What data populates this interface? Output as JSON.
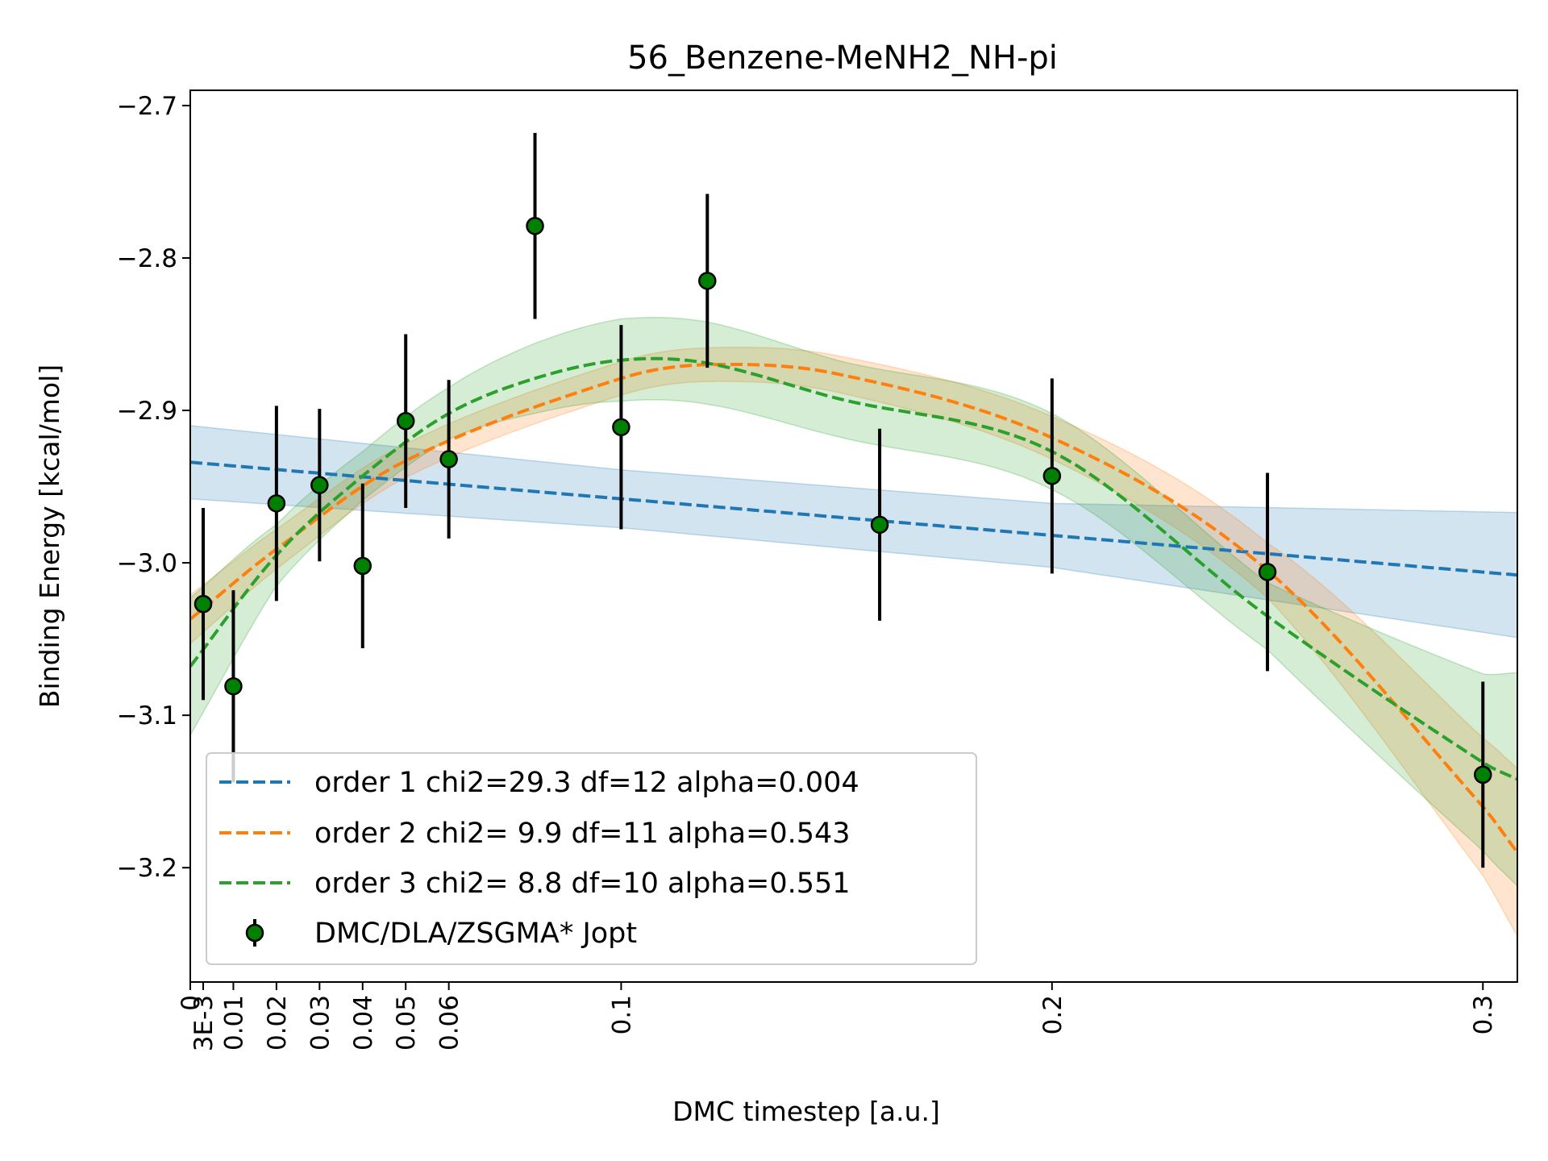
{
  "chart_data": {
    "type": "scatter",
    "title": "56_Benzene-MeNH2_NH-pi",
    "xlabel": "DMC timestep [a.u.]",
    "ylabel": "Binding Energy [kcal/mol]",
    "xlim": [
      0,
      0.308
    ],
    "ylim": [
      -3.275,
      -2.69
    ],
    "x_ticks": [
      {
        "value": 0,
        "label": "0"
      },
      {
        "value": 0.003,
        "label": "3E-3"
      },
      {
        "value": 0.01,
        "label": "0.01"
      },
      {
        "value": 0.02,
        "label": "0.02"
      },
      {
        "value": 0.03,
        "label": "0.03"
      },
      {
        "value": 0.04,
        "label": "0.04"
      },
      {
        "value": 0.05,
        "label": "0.05"
      },
      {
        "value": 0.06,
        "label": "0.06"
      },
      {
        "value": 0.1,
        "label": "0.1"
      },
      {
        "value": 0.2,
        "label": "0.2"
      },
      {
        "value": 0.3,
        "label": "0.3"
      }
    ],
    "y_ticks": [
      {
        "value": -2.7,
        "label": "−2.7"
      },
      {
        "value": -2.8,
        "label": "−2.8"
      },
      {
        "value": -2.9,
        "label": "−2.9"
      },
      {
        "value": -3.0,
        "label": "−3.0"
      },
      {
        "value": -3.1,
        "label": "−3.1"
      },
      {
        "value": -3.2,
        "label": "−3.2"
      }
    ],
    "grid": false,
    "legend_position": "lower-left",
    "points": {
      "name": "DMC/DLA/ZSGMA* Jopt",
      "color": "#008000",
      "x": [
        0.003,
        0.01,
        0.02,
        0.03,
        0.04,
        0.05,
        0.06,
        0.08,
        0.1,
        0.12,
        0.16,
        0.2,
        0.25,
        0.3
      ],
      "y": [
        -3.027,
        -3.081,
        -2.961,
        -2.949,
        -3.002,
        -2.907,
        -2.932,
        -2.779,
        -2.911,
        -2.815,
        -2.975,
        -2.943,
        -3.006,
        -3.139
      ],
      "err": [
        0.063,
        0.063,
        0.064,
        0.05,
        0.054,
        0.057,
        0.052,
        0.061,
        0.067,
        0.057,
        0.063,
        0.064,
        0.065,
        0.061
      ]
    },
    "fits": [
      {
        "name": "order 1 chi2=29.3 df=12 alpha=0.004",
        "color": "#1f77b4",
        "x": [
          0,
          0.1,
          0.2,
          0.308
        ],
        "y": [
          -2.934,
          -2.958,
          -2.982,
          -3.008
        ],
        "band_half_width": [
          0.024,
          0.019,
          0.021,
          0.041
        ]
      },
      {
        "name": "order 2 chi2= 9.9 df=11 alpha=0.543",
        "color": "#ff7f0e",
        "x": [
          0,
          0.02,
          0.05,
          0.1,
          0.12,
          0.15,
          0.2,
          0.25,
          0.3,
          0.308
        ],
        "y": [
          -3.037,
          -2.991,
          -2.933,
          -2.879,
          -2.87,
          -2.876,
          -2.918,
          -3.005,
          -3.16,
          -3.19
        ],
        "band_half_width": [
          0.016,
          0.013,
          0.011,
          0.011,
          0.011,
          0.012,
          0.014,
          0.018,
          0.045,
          0.055
        ]
      },
      {
        "name": "order 3 chi2= 8.8 df=10 alpha=0.551",
        "color": "#2ca02c",
        "x": [
          0,
          0.02,
          0.04,
          0.06,
          0.08,
          0.1,
          0.12,
          0.15,
          0.2,
          0.25,
          0.3,
          0.308
        ],
        "y": [
          -3.068,
          -2.995,
          -2.943,
          -2.902,
          -2.879,
          -2.867,
          -2.869,
          -2.892,
          -2.927,
          -3.035,
          -3.131,
          -3.142
        ],
        "band_half_width": [
          0.045,
          0.02,
          0.016,
          0.017,
          0.023,
          0.027,
          0.027,
          0.025,
          0.025,
          0.022,
          0.058,
          0.07
        ]
      }
    ]
  }
}
